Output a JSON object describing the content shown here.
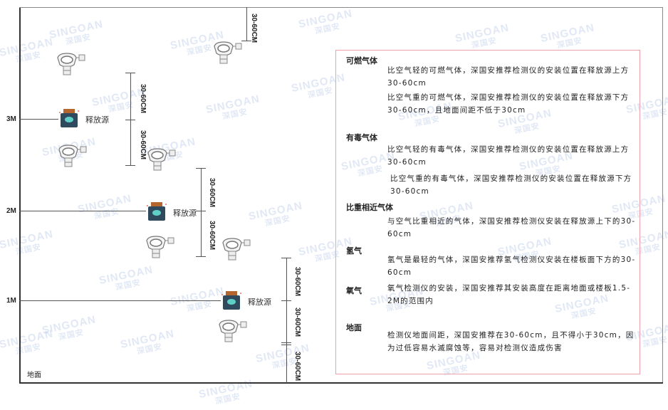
{
  "watermark": {
    "brand": "SINGOAN",
    "cn": "深国安"
  },
  "levels": [
    "3M",
    "2M",
    "1M"
  ],
  "ground_label": "地面",
  "source_label": "释放源",
  "dimension_label": "30-60CM",
  "info": {
    "sections": [
      {
        "title": "可燃气体",
        "paras": [
          "比空气轻的可燃气体，深国安推荐检测仪的安装位置在释放源上方30-60cm",
          "比空气重的可燃气体，深国安推荐检测仪的安装位置在释放源下方30-60cm，且地面间距不低于30cm"
        ]
      },
      {
        "title": "有毒气体",
        "paras": [
          "比空气轻的有毒气体，深国安推荐检测仪的安装位置在释放源上方30-60cm",
          "比空气重的有毒气体，深国安推荐检测仪的安装位置在释放源下方30-60cm"
        ]
      },
      {
        "title": "比重相近气体",
        "paras": [
          "与空气比重相近的气体，深国安推荐检测仪安装在释放源上下的30-60cm"
        ]
      },
      {
        "title": "氢气",
        "paras": [
          "氢气是最轻的气体，深国安推荐氢气检测仪安装在楼板面下方的30-60cm"
        ]
      },
      {
        "title": "氧气",
        "paras": [
          "氧气检测仪的安装，深国安推荐其安装高度在距离地面或楼板1.5-2M的范围内"
        ]
      },
      {
        "title": "地面",
        "paras": [
          "检测仪地面间距，深国安推荐在30-60cm，且不得小于30cm，因为过低容易水滅腐蚀等，容易对检测仪造成伤害"
        ]
      }
    ]
  },
  "colors": {
    "border": "#f0a0a8",
    "source_body": "#2f4a5c",
    "source_face": "#5fd0c8",
    "source_cap": "#b5652e"
  }
}
